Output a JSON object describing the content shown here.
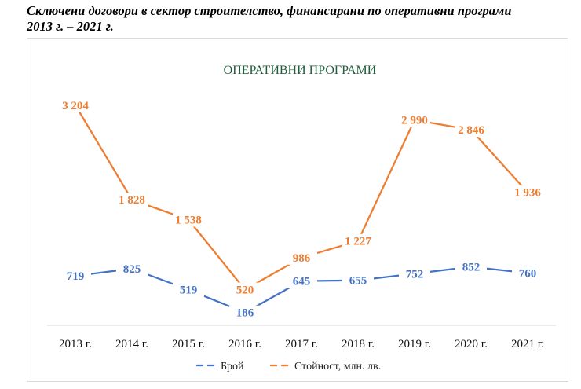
{
  "doc": {
    "title_line1": "Сключени договори в сектор строителство, финансирани по оперативни програми",
    "title_line2": "2013 г. – 2021 г."
  },
  "chart_data": {
    "type": "line",
    "title": "ОПЕРАТИВНИ ПРОГРАМИ",
    "categories": [
      "2013 г.",
      "2014 г.",
      "2015 г.",
      "2016 г.",
      "2017 г.",
      "2018 г.",
      "2019 г.",
      "2020 г.",
      "2021 г."
    ],
    "series": [
      {
        "name": "Брой",
        "color": "#4472c4",
        "values": [
          719,
          825,
          519,
          186,
          645,
          655,
          752,
          852,
          760
        ],
        "labels": [
          "719",
          "825",
          "519",
          "186",
          "645",
          "655",
          "752",
          "852",
          "760"
        ]
      },
      {
        "name": "Стойност, млн. лв.",
        "color": "#ed7d31",
        "values": [
          3204,
          1828,
          1538,
          520,
          986,
          1227,
          2990,
          2846,
          1936
        ],
        "labels": [
          "3 204",
          "1 828",
          "1 538",
          "520",
          "986",
          "1 227",
          "2 990",
          "2 846",
          "1 936"
        ]
      }
    ],
    "ylim": [
      0,
      3500
    ],
    "grid": false,
    "legend": "bottom"
  }
}
